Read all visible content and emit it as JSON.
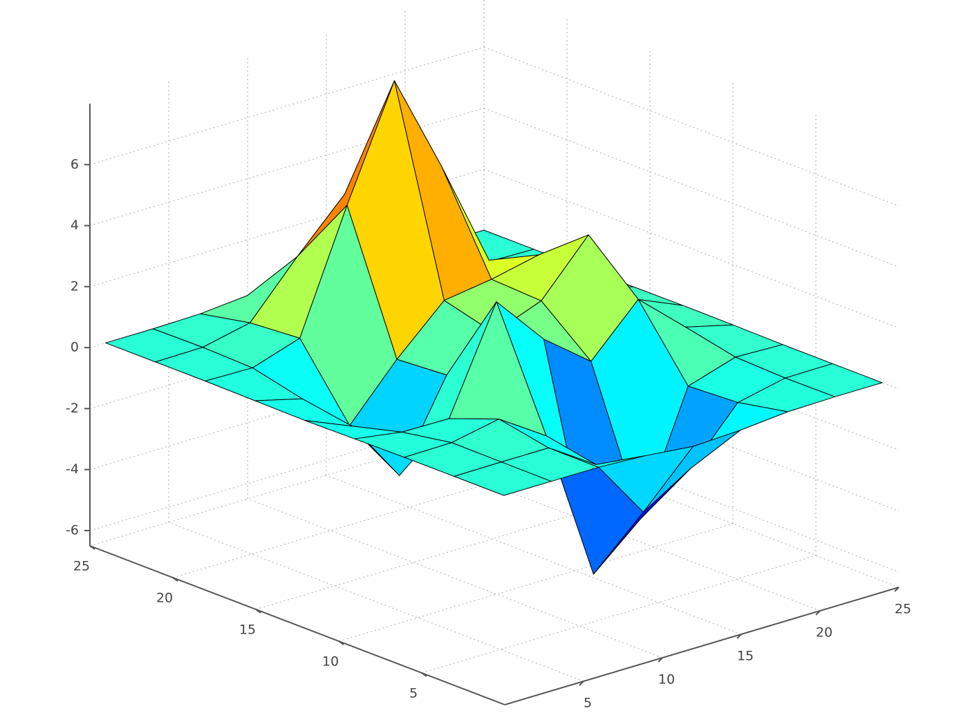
{
  "chart_data": {
    "type": "surface",
    "x": [
      1,
      4,
      7,
      10,
      13,
      16,
      19,
      22,
      25
    ],
    "y": [
      1,
      4,
      7,
      10,
      13,
      16,
      19,
      22,
      25
    ],
    "z": [
      [
        0,
        0,
        0,
        -0.08,
        -0.24,
        -0.17,
        -0.03,
        0,
        0
      ],
      [
        0,
        0.01,
        0.01,
        -1.0,
        -3.02,
        -2.05,
        -0.35,
        -0.01,
        0
      ],
      [
        0,
        0.02,
        0.33,
        -0.68,
        -5.68,
        -4.32,
        -0.44,
        0.05,
        0
      ],
      [
        -0.02,
        -0.26,
        -0.28,
        3.09,
        1.4,
        0.21,
        1.78,
        0.41,
        0.02
      ],
      [
        -0.04,
        -0.69,
        -2.77,
        0.06,
        0.98,
        1.57,
        3.27,
        0.7,
        0.03
      ],
      [
        -0.02,
        -0.42,
        -1.76,
        -0.05,
        1.42,
        1.65,
        1.99,
        0.4,
        0.02
      ],
      [
        0,
        -0.03,
        0.48,
        4.38,
        8.0,
        4.72,
        1.19,
        0.12,
        0
      ],
      [
        0,
        0.02,
        0.36,
        2.07,
        3.65,
        2.09,
        0.41,
        0.03,
        0
      ],
      [
        0,
        0,
        0.03,
        0.17,
        0.3,
        0.17,
        0.03,
        0,
        0
      ]
    ],
    "xlim": [
      0,
      25
    ],
    "ylim": [
      0,
      25
    ],
    "zlim": [
      -6.5,
      8
    ],
    "xticks": [
      5,
      10,
      15,
      20,
      25
    ],
    "yticks": [
      5,
      10,
      15,
      20,
      25
    ],
    "zticks": [
      -6,
      -4,
      -2,
      0,
      2,
      4,
      6
    ],
    "grid": true,
    "colormap": "jet"
  }
}
